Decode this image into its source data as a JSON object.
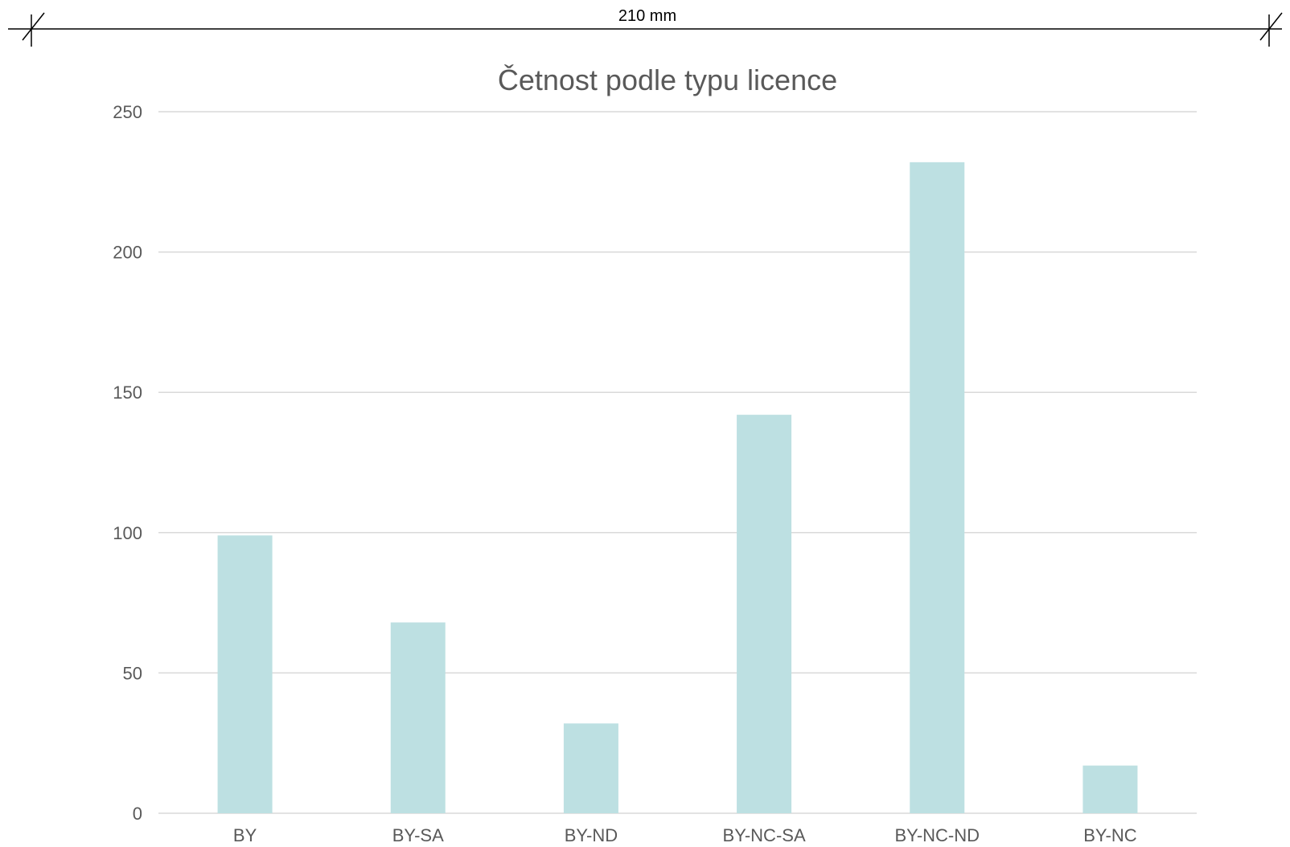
{
  "dimension": {
    "label": "210 mm"
  },
  "colors": {
    "bar": "#bde0e2",
    "grid": "#d9d9d9",
    "text": "#595959"
  },
  "chart_data": {
    "type": "bar",
    "title": "Četnost podle typu licence",
    "categories": [
      "BY",
      "BY-SA",
      "BY-ND",
      "BY-NC-SA",
      "BY-NC-ND",
      "BY-NC"
    ],
    "values": [
      99,
      68,
      32,
      142,
      232,
      17
    ],
    "yticks": [
      0,
      50,
      100,
      150,
      200,
      250
    ],
    "ylim": [
      0,
      250
    ],
    "xlabel": "",
    "ylabel": "",
    "grid": true,
    "legend": "none"
  }
}
